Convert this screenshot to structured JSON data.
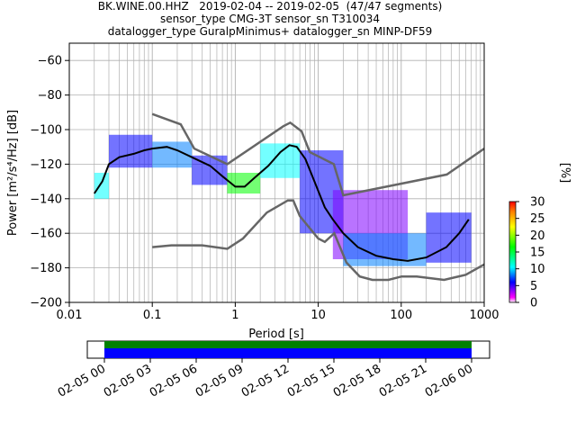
{
  "chart_data": {
    "type": "heatmap",
    "title_lines": [
      "BK.WINE.00.HHZ   2019-02-04 -- 2019-02-05  (47/47 segments)",
      "sensor_type CMG-3T sensor_sn T310034",
      "datalogger_type GuralpMinimus+ datalogger_sn MINP-DF59"
    ],
    "xlabel": "Period [s]",
    "ylabel": "Power [m²/s⁴/Hz] [dB]",
    "xscale": "log",
    "xlim": [
      0.01,
      1000
    ],
    "ylim": [
      -200,
      -50
    ],
    "xtick_labels": [
      "0.01",
      "0.1",
      "1",
      "10",
      "100",
      "1000"
    ],
    "ytick_values": [
      -200,
      -180,
      -160,
      -140,
      -120,
      -100,
      -80,
      -60
    ],
    "grid": true,
    "colorbar": {
      "label": "[%]",
      "range": [
        0,
        30
      ],
      "ticks": [
        0,
        5,
        10,
        15,
        20,
        25,
        30
      ]
    },
    "mean_curve": {
      "x": [
        0.02,
        0.025,
        0.03,
        0.04,
        0.06,
        0.08,
        0.1,
        0.15,
        0.2,
        0.3,
        0.5,
        0.7,
        1,
        1.3,
        1.7,
        2.5,
        3.5,
        4.5,
        5.5,
        7,
        9,
        12,
        15,
        20,
        30,
        50,
        80,
        120,
        200,
        350,
        500,
        650
      ],
      "y": [
        -137,
        -130,
        -120,
        -116,
        -114,
        -112,
        -111,
        -110,
        -112,
        -116,
        -121,
        -127,
        -133,
        -133,
        -128,
        -121,
        -113,
        -109,
        -110,
        -117,
        -130,
        -145,
        -152,
        -160,
        -168,
        -173,
        -175,
        -176,
        -174,
        -168,
        -160,
        -152
      ]
    },
    "nlnm": {
      "x": [
        0.1,
        0.17,
        0.4,
        0.8,
        1.24,
        2.4,
        4.3,
        5,
        6,
        10,
        12,
        15.6,
        21.9,
        31.6,
        45,
        70,
        101,
        154,
        328,
        600,
        1000
      ],
      "y": [
        -168,
        -167,
        -167,
        -169,
        -163,
        -148,
        -141,
        -141,
        -150,
        -163,
        -165,
        -160,
        -177,
        -185,
        -187,
        -187,
        -185,
        -185,
        -187,
        -184,
        -178
      ]
    },
    "nhnm": {
      "x": [
        0.1,
        0.22,
        0.32,
        0.8,
        3.8,
        4.6,
        6.3,
        7.9,
        15.4,
        20,
        354.8,
        1000
      ],
      "y": [
        -91,
        -97,
        -111,
        -120,
        -98,
        -96,
        -101,
        -113,
        -120,
        -138,
        -126,
        -111
      ]
    },
    "density_bands": [
      {
        "x": [
          0.02,
          0.03
        ],
        "y": [
          -140,
          -125
        ],
        "level": 12
      },
      {
        "x": [
          0.03,
          0.1
        ],
        "y": [
          -122,
          -103
        ],
        "level": 8
      },
      {
        "x": [
          0.1,
          0.3
        ],
        "y": [
          -122,
          -107
        ],
        "level": 10
      },
      {
        "x": [
          0.3,
          0.8
        ],
        "y": [
          -132,
          -115
        ],
        "level": 8
      },
      {
        "x": [
          0.8,
          2
        ],
        "y": [
          -137,
          -125
        ],
        "level": 18
      },
      {
        "x": [
          2,
          6
        ],
        "y": [
          -128,
          -108
        ],
        "level": 12
      },
      {
        "x": [
          6,
          20
        ],
        "y": [
          -160,
          -112
        ],
        "level": 6
      },
      {
        "x": [
          15,
          120
        ],
        "y": [
          -175,
          -135
        ],
        "level": 3
      },
      {
        "x": [
          20,
          200
        ],
        "y": [
          -179,
          -160
        ],
        "level": 10
      },
      {
        "x": [
          200,
          700
        ],
        "y": [
          -177,
          -148
        ],
        "level": 8
      }
    ],
    "time_axis": {
      "tick_labels": [
        "02-05 00",
        "02-05 03",
        "02-05 06",
        "02-05 09",
        "02-05 12",
        "02-05 15",
        "02-05 18",
        "02-05 21",
        "02-06 00"
      ],
      "coverage_color": "#0000ff",
      "data_color": "#008000"
    }
  }
}
